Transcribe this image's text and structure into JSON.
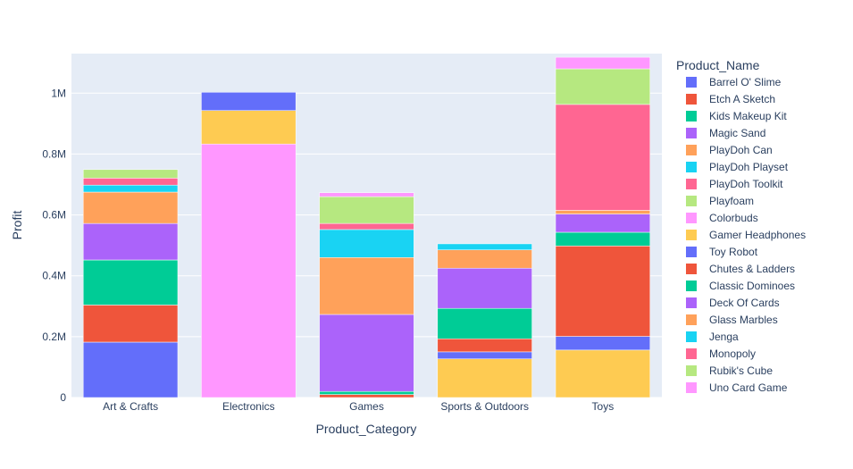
{
  "chart_data": {
    "type": "bar",
    "stacked": true,
    "xlabel": "Product_Category",
    "ylabel": "Profit",
    "ylim": [
      0,
      1130000
    ],
    "yticks": [
      0,
      200000,
      400000,
      600000,
      800000,
      1000000
    ],
    "ytick_labels": [
      "0",
      "0.2M",
      "0.4M",
      "0.6M",
      "0.8M",
      "1M"
    ],
    "legend_title": "Product_Name",
    "legend_position": "right",
    "plot_background": "#e5ecf6",
    "grid": true,
    "categories": [
      "Art & Crafts",
      "Electronics",
      "Games",
      "Sports & Outdoors",
      "Toys"
    ],
    "series": [
      {
        "name": "Barrel O' Slime",
        "color": "#636efa",
        "values": [
          182000,
          0,
          0,
          0,
          0
        ]
      },
      {
        "name": "Etch A Sketch",
        "color": "#EF553B",
        "values": [
          122000,
          0,
          0,
          0,
          0
        ]
      },
      {
        "name": "Kids Makeup Kit",
        "color": "#00cc96",
        "values": [
          148000,
          0,
          0,
          0,
          0
        ]
      },
      {
        "name": "Magic Sand",
        "color": "#ab63fa",
        "values": [
          120000,
          0,
          0,
          0,
          0
        ]
      },
      {
        "name": "PlayDoh Can",
        "color": "#FFA15A",
        "values": [
          103000,
          0,
          0,
          0,
          0
        ]
      },
      {
        "name": "PlayDoh Playset",
        "color": "#19d3f3",
        "values": [
          23000,
          0,
          0,
          0,
          0
        ]
      },
      {
        "name": "PlayDoh Toolkit",
        "color": "#FF6692",
        "values": [
          23000,
          0,
          0,
          0,
          0
        ]
      },
      {
        "name": "Playfoam",
        "color": "#B6E880",
        "values": [
          28000,
          0,
          0,
          0,
          0
        ]
      },
      {
        "name": "Colorbuds",
        "color": "#FF97FF",
        "values": [
          0,
          833000,
          0,
          0,
          0
        ]
      },
      {
        "name": "Gamer Headphones",
        "color": "#FECB52",
        "values": [
          0,
          110000,
          0,
          127000,
          156000
        ]
      },
      {
        "name": "Toy Robot",
        "color": "#636efa",
        "values": [
          0,
          60000,
          0,
          23000,
          45000
        ]
      },
      {
        "name": "Chutes & Ladders",
        "color": "#EF553B",
        "values": [
          0,
          0,
          10000,
          43000,
          297000
        ]
      },
      {
        "name": "Classic Dominoes",
        "color": "#00cc96",
        "values": [
          0,
          0,
          10000,
          100000,
          45000
        ]
      },
      {
        "name": "Deck Of Cards",
        "color": "#ab63fa",
        "values": [
          0,
          0,
          253000,
          132000,
          60000
        ]
      },
      {
        "name": "Glass Marbles",
        "color": "#FFA15A",
        "values": [
          0,
          0,
          187000,
          60000,
          12000
        ]
      },
      {
        "name": "Jenga",
        "color": "#19d3f3",
        "values": [
          0,
          0,
          92000,
          20000,
          0
        ]
      },
      {
        "name": "Monopoly",
        "color": "#FF6692",
        "values": [
          0,
          0,
          20000,
          0,
          348000
        ]
      },
      {
        "name": "Rubik's Cube",
        "color": "#B6E880",
        "values": [
          0,
          0,
          88000,
          0,
          117000
        ]
      },
      {
        "name": "Uno Card Game",
        "color": "#FF97FF",
        "values": [
          0,
          0,
          13000,
          0,
          38000
        ]
      }
    ]
  }
}
